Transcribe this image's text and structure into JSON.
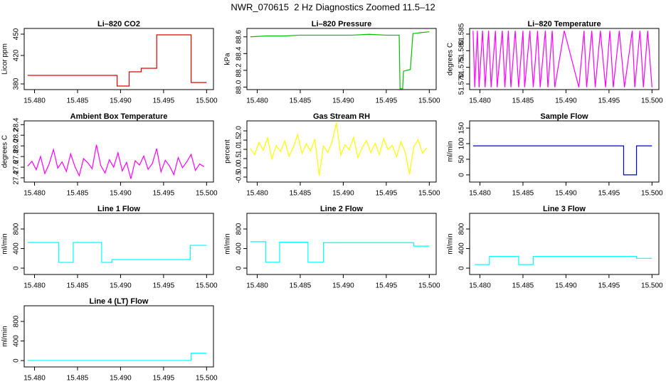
{
  "title": "NWR_070615  2 Hz Diagnostics Zoomed 11.5–12",
  "chart_data": [
    {
      "type": "line",
      "title": "Li–820 CO2",
      "ylabel": "Licor ppm",
      "x": [
        15.4792,
        15.4896,
        15.4896,
        15.491,
        15.491,
        15.4924,
        15.4924,
        15.4942,
        15.4942,
        15.4982,
        15.4982,
        15.5
      ],
      "series": [
        {
          "color": "#e00000",
          "values": [
            392,
            392,
            377,
            377,
            397,
            397,
            402,
            402,
            449,
            449,
            382,
            382
          ]
        }
      ],
      "xlim": [
        15.4788,
        15.5008
      ],
      "ylim": [
        372,
        458
      ],
      "xticks": [
        {
          "value": 15.48,
          "label": "15.480"
        },
        15.485,
        {
          "value": 15.49,
          "label": "15.490"
        },
        15.495,
        {
          "value": 15.5,
          "label": "15.500"
        }
      ],
      "yticks": [
        380,
        420,
        450
      ]
    },
    {
      "type": "line",
      "title": "Li–820 Pressure",
      "ylabel": "kPa",
      "x": [
        15.4792,
        15.481,
        15.483,
        15.485,
        15.487,
        15.489,
        15.491,
        15.493,
        15.495,
        15.4965,
        15.4966,
        15.4969,
        15.497,
        15.4978,
        15.4981,
        15.4983,
        15.499,
        15.5
      ],
      "series": [
        {
          "color": "#00c000",
          "values": [
            88.6,
            88.61,
            88.61,
            88.62,
            88.62,
            88.62,
            88.62,
            88.63,
            88.62,
            88.62,
            87.98,
            87.98,
            88.19,
            88.21,
            88.64,
            88.64,
            88.65,
            88.66
          ]
        }
      ],
      "xlim": [
        15.4788,
        15.5008
      ],
      "ylim": [
        87.97,
        88.7
      ],
      "xticks": [
        {
          "value": 15.48,
          "label": "15.480"
        },
        15.485,
        {
          "value": 15.49,
          "label": "15.490"
        },
        15.495,
        {
          "value": 15.5,
          "label": "15.500"
        }
      ],
      "yticks": [
        {
          "value": 88,
          "label": "88.0"
        },
        88.2,
        88.4,
        88.6
      ]
    },
    {
      "type": "line",
      "title": "Li–820 Temperature",
      "ylabel": "degrees C",
      "x": [
        15.4792,
        15.4794,
        15.4797,
        15.4799,
        15.4803,
        15.4806,
        15.481,
        15.4813,
        15.4818,
        15.482,
        15.4826,
        15.4829,
        15.4833,
        15.4836,
        15.4841,
        15.4845,
        15.485,
        15.4852,
        15.4858,
        15.4862,
        15.4867,
        15.487,
        15.4876,
        15.4879,
        15.4884,
        15.4887,
        15.4898,
        15.4915,
        15.4921,
        15.4924,
        15.493,
        15.4934,
        15.494,
        15.4946,
        15.4951,
        15.4955,
        15.4962,
        15.4968,
        15.4977,
        15.498,
        15.4986,
        15.499,
        15.4995,
        15.5
      ],
      "series": [
        {
          "color": "#ff00ff",
          "values": [
            51.586,
            51.569,
            51.586,
            51.569,
            51.586,
            51.569,
            51.586,
            51.569,
            51.586,
            51.569,
            51.586,
            51.569,
            51.586,
            51.569,
            51.586,
            51.569,
            51.586,
            51.569,
            51.586,
            51.569,
            51.586,
            51.569,
            51.586,
            51.569,
            51.586,
            51.569,
            51.586,
            51.569,
            51.586,
            51.569,
            51.586,
            51.569,
            51.586,
            51.569,
            51.586,
            51.569,
            51.586,
            51.569,
            51.586,
            51.569,
            51.586,
            51.569,
            51.586,
            51.569
          ]
        }
      ],
      "xlim": [
        15.4788,
        15.5008
      ],
      "ylim": [
        51.5683,
        51.5867
      ],
      "xticks": [
        {
          "value": 15.48,
          "label": "15.480"
        },
        15.485,
        {
          "value": 15.49,
          "label": "15.490"
        },
        15.495,
        {
          "value": 15.5,
          "label": "15.500"
        }
      ],
      "yticks": [
        {
          "value": 51.57,
          "label": "51.570"
        },
        51.575,
        {
          "value": 51.58,
          "label": "51.580"
        },
        51.585
      ]
    },
    {
      "type": "line",
      "title": "Ambient Box Temperature",
      "ylabel": "degrees C",
      "x": [
        15.4792,
        15.4797,
        15.4802,
        15.4807,
        15.4812,
        15.4817,
        15.4822,
        15.4827,
        15.4832,
        15.4837,
        15.4842,
        15.4847,
        15.4852,
        15.4857,
        15.4862,
        15.4867,
        15.4872,
        15.4877,
        15.4882,
        15.4887,
        15.4892,
        15.4897,
        15.4902,
        15.4907,
        15.4912,
        15.4917,
        15.4922,
        15.4927,
        15.4932,
        15.4937,
        15.4942,
        15.4947,
        15.4952,
        15.4957,
        15.4962,
        15.4967,
        15.4972,
        15.4977,
        15.4982,
        15.4987,
        15.4992,
        15.4997
      ],
      "series": [
        {
          "color": "#ff00ff",
          "values": [
            27.62,
            27.71,
            27.55,
            27.8,
            27.48,
            27.66,
            27.93,
            27.58,
            27.7,
            27.52,
            27.85,
            27.61,
            27.44,
            27.76,
            27.68,
            27.57,
            28.02,
            27.63,
            27.49,
            27.74,
            27.6,
            27.87,
            27.53,
            27.69,
            27.38,
            27.72,
            27.64,
            27.81,
            27.56,
            27.67,
            27.95,
            27.51,
            27.73,
            27.62,
            27.46,
            27.78,
            27.59,
            27.7,
            27.84,
            27.54,
            27.66,
            27.61
          ]
        }
      ],
      "xlim": [
        15.4788,
        15.5008
      ],
      "ylim": [
        27.32,
        28.47
      ],
      "xticks": [
        {
          "value": 15.48,
          "label": "15.480"
        },
        15.485,
        {
          "value": 15.49,
          "label": "15.490"
        },
        15.495,
        {
          "value": 15.5,
          "label": "15.500"
        }
      ],
      "yticks": [
        27.4,
        27.6,
        27.8,
        {
          "value": 28,
          "label": "28.0"
        },
        28.2,
        28.4
      ]
    },
    {
      "type": "line",
      "title": "Gas Stream RH",
      "ylabel": "percent",
      "x": [
        15.4792,
        15.4797,
        15.4802,
        15.4807,
        15.4812,
        15.4817,
        15.4822,
        15.4827,
        15.4832,
        15.4837,
        15.4842,
        15.4847,
        15.4852,
        15.4857,
        15.4862,
        15.4867,
        15.4872,
        15.4877,
        15.4882,
        15.4887,
        15.4892,
        15.4897,
        15.4902,
        15.4907,
        15.4912,
        15.4917,
        15.4922,
        15.4927,
        15.4932,
        15.4937,
        15.4942,
        15.4947,
        15.4952,
        15.4957,
        15.4962,
        15.4967,
        15.4972,
        15.4977,
        15.4982,
        15.4987,
        15.4992,
        15.4997
      ],
      "series": [
        {
          "color": "#ffff00",
          "values": [
            1.05,
            0.72,
            1.38,
            0.95,
            1.62,
            0.48,
            1.21,
            0.88,
            1.45,
            0.63,
            1.12,
            1.8,
            0.77,
            1.3,
            0.91,
            1.55,
            -0.42,
            1.18,
            0.84,
            1.4,
            2.45,
            0.69,
            1.25,
            0.97,
            1.66,
            0.55,
            1.1,
            1.48,
            0.82,
            1.33,
            0.73,
            1.58,
            0.99,
            1.22,
            0.6,
            1.41,
            0.86,
            -0.35,
            1.15,
            1.52,
            0.79,
            1.08
          ]
        }
      ],
      "xlim": [
        15.4788,
        15.5008
      ],
      "ylim": [
        -0.77,
        2.54
      ],
      "xticks": [
        {
          "value": 15.48,
          "label": "15.480"
        },
        15.485,
        {
          "value": 15.49,
          "label": "15.490"
        },
        15.495,
        {
          "value": 15.5,
          "label": "15.500"
        }
      ],
      "yticks": [
        -0.5,
        {
          "value": 0,
          "label": "0.0"
        },
        0.5,
        {
          "value": 1,
          "label": "1.0"
        },
        1.5,
        {
          "value": 2,
          "label": "2.0"
        }
      ]
    },
    {
      "type": "line",
      "title": "Sample Flow",
      "ylabel": "ml/min",
      "x": [
        15.4792,
        15.4967,
        15.4967,
        15.4982,
        15.4982,
        15.5
      ],
      "series": [
        {
          "color": "#0000d0",
          "values": [
            93,
            93,
            0,
            0,
            93,
            93
          ]
        }
      ],
      "xlim": [
        15.4788,
        15.5008
      ],
      "ylim": [
        -23,
        173
      ],
      "xticks": [
        {
          "value": 15.48,
          "label": "15.480"
        },
        15.485,
        {
          "value": 15.49,
          "label": "15.490"
        },
        15.495,
        {
          "value": 15.5,
          "label": "15.500"
        }
      ],
      "yticks": [
        0,
        50,
        100,
        150
      ]
    },
    {
      "type": "line",
      "title": "Line 1 Flow",
      "ylabel": "ml/min",
      "x": [
        15.4792,
        15.4828,
        15.4828,
        15.4845,
        15.4845,
        15.4878,
        15.4878,
        15.489,
        15.489,
        15.4981,
        15.4981,
        15.5
      ],
      "series": [
        {
          "color": "#00ffff",
          "values": [
            524,
            524,
            116,
            116,
            524,
            524,
            116,
            116,
            175,
            175,
            465,
            465
          ]
        }
      ],
      "xlim": [
        15.4788,
        15.5008
      ],
      "ylim": [
        -130,
        1120
      ],
      "xticks": [
        {
          "value": 15.48,
          "label": "15.480"
        },
        15.485,
        {
          "value": 15.49,
          "label": "15.490"
        },
        15.495,
        {
          "value": 15.5,
          "label": "15.500"
        }
      ],
      "yticks": [
        0,
        400,
        800
      ]
    },
    {
      "type": "line",
      "title": "Line 2 Flow",
      "ylabel": "ml/min",
      "x": [
        15.4792,
        15.481,
        15.481,
        15.4826,
        15.4826,
        15.4859,
        15.4859,
        15.4877,
        15.4877,
        15.4982,
        15.4982,
        15.5
      ],
      "series": [
        {
          "color": "#00ffff",
          "values": [
            540,
            540,
            120,
            120,
            530,
            530,
            120,
            120,
            520,
            520,
            450,
            450
          ]
        }
      ],
      "xlim": [
        15.4788,
        15.5008
      ],
      "ylim": [
        -130,
        1120
      ],
      "xticks": [
        {
          "value": 15.48,
          "label": "15.480"
        },
        15.485,
        {
          "value": 15.49,
          "label": "15.490"
        },
        15.495,
        {
          "value": 15.5,
          "label": "15.500"
        }
      ],
      "yticks": [
        0,
        400,
        800
      ]
    },
    {
      "type": "line",
      "title": "Line 3 Flow",
      "ylabel": "ml/min",
      "x": [
        15.4794,
        15.4811,
        15.4811,
        15.4845,
        15.4845,
        15.4862,
        15.4862,
        15.4982,
        15.4982,
        15.5
      ],
      "series": [
        {
          "color": "#00ffff",
          "values": [
            73,
            73,
            240,
            240,
            73,
            73,
            240,
            240,
            200,
            200
          ]
        }
      ],
      "xlim": [
        15.4788,
        15.5008
      ],
      "ylim": [
        -130,
        1120
      ],
      "xticks": [
        {
          "value": 15.48,
          "label": "15.480"
        },
        15.485,
        {
          "value": 15.49,
          "label": "15.490"
        },
        15.495,
        {
          "value": 15.5,
          "label": "15.500"
        }
      ],
      "yticks": [
        0,
        400,
        800
      ]
    },
    {
      "type": "line",
      "title": "Line 4 (LT) Flow",
      "ylabel": "ml/min",
      "x": [
        15.4792,
        15.4982,
        15.4982,
        15.5
      ],
      "series": [
        {
          "color": "#00ffff",
          "values": [
            2,
            2,
            150,
            150
          ]
        }
      ],
      "xlim": [
        15.4788,
        15.5008
      ],
      "ylim": [
        -130,
        1120
      ],
      "xticks": [
        {
          "value": 15.48,
          "label": "15.480"
        },
        15.485,
        {
          "value": 15.49,
          "label": "15.490"
        },
        15.495,
        {
          "value": 15.5,
          "label": "15.500"
        }
      ],
      "yticks": [
        0,
        400,
        800
      ]
    }
  ]
}
